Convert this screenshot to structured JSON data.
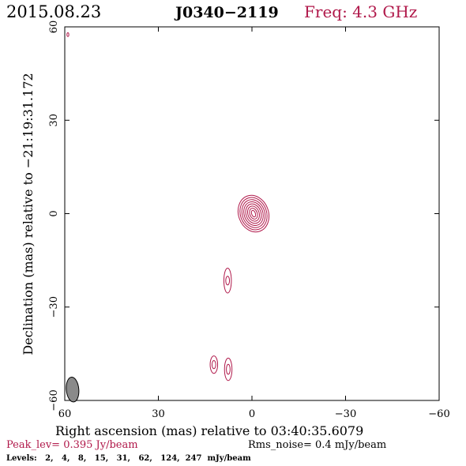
{
  "header": {
    "date": "2015.08.23",
    "source": "J0340−2119",
    "freq": "Freq: 4.3 GHz"
  },
  "footer": {
    "peak": "Peak_lev=  0.395 Jy/beam",
    "rms": "Rms_noise=  0.4 mJy/beam",
    "levels": "Levels:   2,   4,   8,   15,   31,   62,   124,  247  mJy/beam"
  },
  "colors": {
    "contour": "#b0184a",
    "axis": "#000000",
    "beam_fill": "#8a8a8a"
  },
  "chart_data": {
    "type": "contour",
    "xlabel": "Right ascension (mas) relative to 03:40:35.6079",
    "ylabel": "Declination (mas) relative to −21:19:31.172",
    "xlim": [
      60,
      -60
    ],
    "ylim": [
      -60,
      60
    ],
    "xticks": [
      60,
      30,
      0,
      -30,
      -60
    ],
    "yticks": [
      60,
      30,
      0,
      -30,
      -60
    ],
    "xtick_labels": [
      "60",
      "30",
      "0",
      "−30",
      "−60"
    ],
    "ytick_labels": [
      "60",
      "30",
      "0",
      "−30",
      "−60"
    ],
    "contour_levels_mJy_per_beam": [
      2,
      4,
      8,
      15,
      31,
      62,
      124,
      247
    ],
    "components": [
      {
        "name": "core",
        "center": [
          -0.5,
          0.0
        ],
        "rings": [
          {
            "rx": 4.8,
            "ry": 6.0,
            "angle": -20
          },
          {
            "rx": 4.2,
            "ry": 5.3,
            "angle": -20
          },
          {
            "rx": 3.6,
            "ry": 4.6,
            "angle": -20
          },
          {
            "rx": 3.0,
            "ry": 3.9,
            "angle": -20
          },
          {
            "rx": 2.4,
            "ry": 3.2,
            "angle": -20
          },
          {
            "rx": 1.8,
            "ry": 2.5,
            "angle": -20
          },
          {
            "rx": 1.2,
            "ry": 1.8,
            "angle": -20
          },
          {
            "rx": 0.6,
            "ry": 1.1,
            "angle": -20
          }
        ]
      },
      {
        "name": "jet-knot-1",
        "center": [
          7.8,
          -21.5
        ],
        "rings": [
          {
            "rx": 1.2,
            "ry": 4.0,
            "angle": 0
          },
          {
            "rx": 0.6,
            "ry": 1.4,
            "angle": 0
          }
        ]
      },
      {
        "name": "jet-knot-2",
        "center": [
          12.2,
          -48.5
        ],
        "rings": [
          {
            "rx": 1.2,
            "ry": 2.8,
            "angle": 0
          },
          {
            "rx": 0.6,
            "ry": 1.3,
            "angle": 0
          }
        ]
      },
      {
        "name": "jet-knot-3",
        "center": [
          7.6,
          -50.0
        ],
        "rings": [
          {
            "rx": 1.2,
            "ry": 3.6,
            "angle": 0
          },
          {
            "rx": 0.6,
            "ry": 1.6,
            "angle": 0
          }
        ]
      },
      {
        "name": "corner-artifact",
        "center": [
          59.0,
          57.5
        ],
        "rings": [
          {
            "rx": 0.3,
            "ry": 0.6,
            "angle": 0
          }
        ]
      }
    ],
    "beam": {
      "x": 57.5,
      "y": -56.5,
      "bmaj": 4.0,
      "bmin": 2.0,
      "pa": -5
    }
  }
}
